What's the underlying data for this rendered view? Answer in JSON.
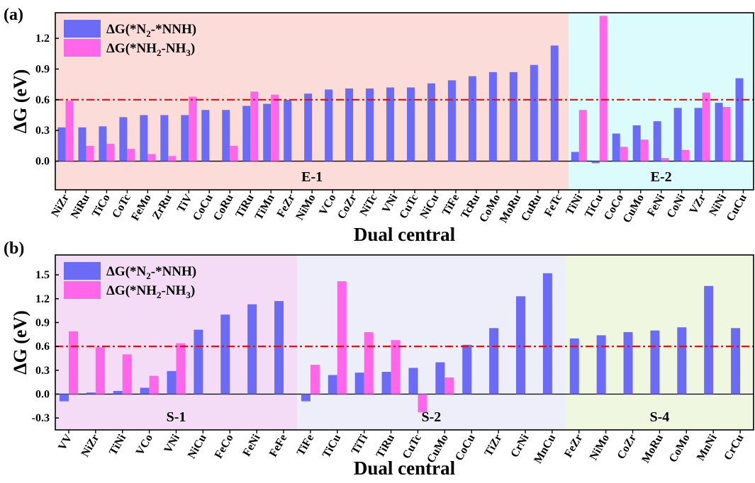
{
  "chart_data": [
    {
      "type": "bar",
      "panel_label": "(a)",
      "xlabel": "Dual central",
      "ylabel": "ΔG (eV)",
      "ylim": [
        -0.28,
        1.45
      ],
      "yticks": [
        "0.0",
        "0.3",
        "0.6",
        "0.9",
        "1.2"
      ],
      "reference_line": 0.6,
      "categories": [
        "NiZr",
        "NiRu",
        "TiCo",
        "CoTc",
        "FeMo",
        "ZrRu",
        "TiV",
        "CoCu",
        "CoRu",
        "TiRu",
        "TiMn",
        "FeZr",
        "NiMo",
        "VCo",
        "CoZr",
        "NiTc",
        "VNi",
        "CuTc",
        "NiCu",
        "TiFe",
        "TcRu",
        "CoMo",
        "MoRu",
        "CuRu",
        "FeTc",
        "TiNi",
        "TiCu",
        "CoCo",
        "CuMo",
        "FeNi",
        "CoNi",
        "VZr",
        "NiNi",
        "CuCu"
      ],
      "series": [
        {
          "name": "ΔG(*N2-*NNH)",
          "color": "#6b6bf5",
          "values": [
            0.33,
            0.33,
            0.34,
            0.43,
            0.45,
            0.45,
            0.45,
            0.5,
            0.5,
            0.54,
            0.56,
            0.6,
            0.66,
            0.7,
            0.71,
            0.71,
            0.72,
            0.72,
            0.76,
            0.79,
            0.83,
            0.87,
            0.87,
            0.94,
            1.13,
            0.09,
            -0.02,
            0.27,
            0.35,
            0.39,
            0.52,
            0.52,
            0.57,
            0.81
          ]
        },
        {
          "name": "ΔG(*NH2-NH3)",
          "color": "#ff66e8",
          "values": [
            0.59,
            0.15,
            0.17,
            0.12,
            0.07,
            0.05,
            0.63,
            null,
            0.15,
            0.68,
            0.65,
            null,
            null,
            null,
            null,
            null,
            null,
            null,
            null,
            null,
            null,
            null,
            null,
            null,
            null,
            0.5,
            1.42,
            0.14,
            0.21,
            0.03,
            0.11,
            0.67,
            0.53,
            null
          ]
        }
      ],
      "groups": [
        {
          "label": "E-1",
          "from": 0,
          "to": 24,
          "color": "#fbdcd8"
        },
        {
          "label": "E-2",
          "from": 25,
          "to": 33,
          "color": "#dcfbfd"
        }
      ],
      "legend": [
        {
          "label": "ΔG(*N",
          "sub": "2",
          "tail": "-*NNH)"
        },
        {
          "label": "ΔG(*NH",
          "sub": "2",
          "mid": "-NH",
          "sub2": "3",
          "tail": ")"
        }
      ]
    },
    {
      "type": "bar",
      "panel_label": "(b)",
      "xlabel": "Dual central",
      "ylabel": "ΔG (eV)",
      "ylim": [
        -0.45,
        1.75
      ],
      "yticks": [
        "-0.3",
        "0.0",
        "0.3",
        "0.6",
        "0.9",
        "1.2",
        "1.5"
      ],
      "reference_line": 0.6,
      "categories": [
        "VV",
        "NiZr",
        "TiNi",
        "VCo",
        "VNi",
        "NiCu",
        "FeCo",
        "FeNi",
        "FeFe",
        "TiFe",
        "TiCu",
        "TiTi",
        "TiRu",
        "CuTc",
        "CuMo",
        "CoCu",
        "TiZr",
        "CrNi",
        "MnCu",
        "FeZr",
        "NiMo",
        "CoZr",
        "MoRu",
        "CoMo",
        "MnNi",
        "CrCu"
      ],
      "series": [
        {
          "name": "ΔG(*N2-*NNH)",
          "color": "#6b6bf5",
          "values": [
            -0.09,
            0.02,
            0.04,
            0.08,
            0.29,
            0.81,
            1.0,
            1.13,
            1.17,
            -0.09,
            0.24,
            0.27,
            0.28,
            0.33,
            0.4,
            0.62,
            0.83,
            1.23,
            1.52,
            0.7,
            0.74,
            0.78,
            0.8,
            0.84,
            1.36,
            0.83
          ]
        },
        {
          "name": "ΔG(*NH2-NH3)",
          "color": "#ff66e8",
          "values": [
            0.79,
            0.59,
            0.5,
            0.23,
            0.64,
            null,
            null,
            null,
            null,
            0.37,
            1.42,
            0.78,
            0.68,
            -0.23,
            0.21,
            null,
            null,
            null,
            null,
            null,
            null,
            null,
            null,
            null,
            null,
            null
          ]
        }
      ],
      "groups": [
        {
          "label": "S-1",
          "from": 0,
          "to": 8,
          "color": "#f4dcf7"
        },
        {
          "label": "S-2",
          "from": 9,
          "to": 18,
          "color": "#eeeefb"
        },
        {
          "label": "S-4",
          "from": 19,
          "to": 25,
          "color": "#f0f7e0"
        }
      ],
      "legend": [
        {
          "label": "ΔG(*N",
          "sub": "2",
          "tail": "-*NNH)"
        },
        {
          "label": "ΔG(*NH",
          "sub": "2",
          "mid": "-NH",
          "sub2": "3",
          "tail": ")"
        }
      ]
    }
  ]
}
